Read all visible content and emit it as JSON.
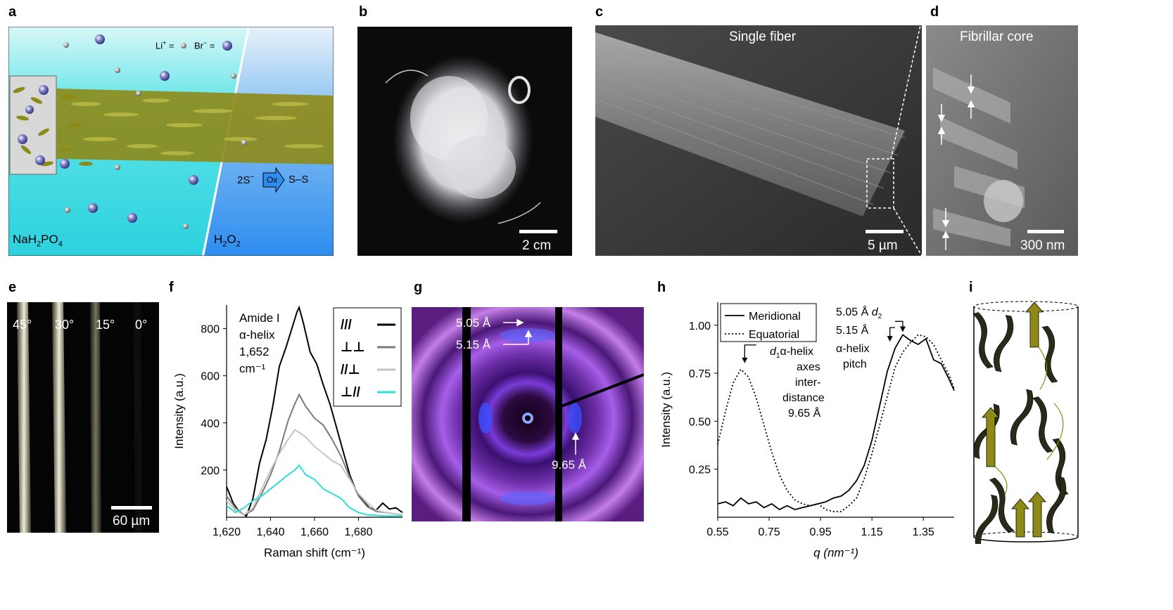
{
  "panels": {
    "a": {
      "letter": "a",
      "li_label": "Li",
      "li_sup": "+",
      "li_eq": "=",
      "br_label": "Br",
      "br_sup": "−",
      "br_eq": "=",
      "bath_left": {
        "t1": "NaH",
        "s1": "2",
        "t2": "PO",
        "s2": "4"
      },
      "bath_right": {
        "t1": "H",
        "s1": "2",
        "t2": "O",
        "s2": "2"
      },
      "reaction_left": "2S",
      "reaction_left_sup": "−",
      "reaction_arrow_label": "Ox",
      "reaction_right": "S–S",
      "colors": {
        "bath_left": "#38d9e6",
        "bath_right": "#3aa6f0",
        "fiber": "#8e8a17",
        "ion": "#5b5aa8"
      }
    },
    "b": {
      "letter": "b",
      "scale_label": "2 cm"
    },
    "c": {
      "letter": "c",
      "title": "Single fiber",
      "scale_label": "5 µm"
    },
    "d": {
      "letter": "d",
      "title": "Fibrillar core",
      "scale_label": "300 nm"
    },
    "e": {
      "letter": "e",
      "angles": [
        "45°",
        "30°",
        "15°",
        "0°"
      ],
      "scale_label": "60 µm"
    },
    "f": {
      "letter": "f"
    },
    "g": {
      "letter": "g",
      "labels": {
        "d505": "5.05 Å",
        "d515": "5.15 Å",
        "d965": "9.65 Å"
      }
    },
    "h": {
      "letter": "h",
      "labels": {
        "d505": "5.05 Å",
        "d2": "d",
        "d2_sub": "2",
        "d515": "5.15 Å",
        "pitch1": "α-helix",
        "pitch2": "pitch",
        "d1": "d",
        "d1_sub": "1",
        "d1_line1": "α-helix",
        "d1_line2": "axes",
        "d1_line3": "inter-",
        "d1_line4": "distance",
        "d1_line5": "9.65 Å"
      }
    },
    "i": {
      "letter": "i"
    }
  },
  "chart_data": [
    {
      "panel": "f",
      "type": "line",
      "xlabel": "Raman shift (cm⁻¹)",
      "ylabel": "Intensity (a.u.)",
      "xlim": [
        1620,
        1700
      ],
      "ylim": [
        0,
        900
      ],
      "xticks": [
        1620,
        1640,
        1660,
        1680
      ],
      "xtick_labels": [
        "1,620",
        "1,640",
        "1,660",
        "1,680"
      ],
      "yticks": [
        200,
        400,
        600,
        800
      ],
      "annotation": [
        "Amide I",
        "α-helix",
        "1,652",
        "cm⁻¹"
      ],
      "legend_position": "top-right",
      "series": [
        {
          "name": "///",
          "color": "#000000",
          "x": [
            1620,
            1623,
            1626,
            1629,
            1632,
            1635,
            1638,
            1641,
            1644,
            1647,
            1650,
            1652,
            1653,
            1655,
            1658,
            1661,
            1664,
            1667,
            1670,
            1673,
            1676,
            1679,
            1682,
            1685,
            1688,
            1691,
            1694,
            1697,
            1700
          ],
          "y": [
            130,
            60,
            20,
            5,
            80,
            230,
            330,
            470,
            640,
            720,
            810,
            870,
            890,
            820,
            700,
            650,
            560,
            480,
            380,
            280,
            180,
            110,
            70,
            40,
            30,
            60,
            35,
            40,
            20
          ]
        },
        {
          "name": "⊥⊥",
          "color": "#7a7a7a",
          "x": [
            1620,
            1624,
            1628,
            1632,
            1636,
            1640,
            1644,
            1648,
            1651,
            1653,
            1656,
            1660,
            1664,
            1668,
            1672,
            1676,
            1680,
            1684,
            1688,
            1692,
            1696,
            1700
          ],
          "y": [
            90,
            40,
            10,
            30,
            100,
            180,
            280,
            410,
            480,
            520,
            470,
            420,
            390,
            330,
            260,
            170,
            90,
            45,
            25,
            20,
            15,
            10
          ]
        },
        {
          "name": "//⊥",
          "color": "#c4c4c4",
          "x": [
            1620,
            1624,
            1628,
            1632,
            1636,
            1640,
            1644,
            1648,
            1651,
            1653,
            1656,
            1660,
            1664,
            1668,
            1672,
            1676,
            1680,
            1684,
            1688,
            1692,
            1696,
            1700
          ],
          "y": [
            70,
            30,
            10,
            40,
            120,
            200,
            270,
            330,
            370,
            360,
            340,
            300,
            270,
            240,
            220,
            160,
            100,
            60,
            30,
            20,
            15,
            10
          ]
        },
        {
          "name": "⊥//",
          "color": "#2be0d4",
          "x": [
            1620,
            1624,
            1628,
            1632,
            1636,
            1640,
            1644,
            1648,
            1651,
            1653,
            1656,
            1660,
            1664,
            1668,
            1672,
            1676,
            1680,
            1684,
            1688,
            1692,
            1696,
            1700
          ],
          "y": [
            50,
            20,
            40,
            70,
            90,
            120,
            150,
            180,
            200,
            220,
            180,
            160,
            120,
            100,
            80,
            40,
            20,
            10,
            8,
            5,
            5,
            5
          ]
        }
      ]
    },
    {
      "panel": "h",
      "type": "line",
      "xlabel": "q (nm⁻¹)",
      "ylabel": "Intensity (a.u.)",
      "xlim": [
        0.55,
        1.47
      ],
      "ylim": [
        0,
        1.12
      ],
      "xticks": [
        0.55,
        0.75,
        0.95,
        1.15,
        1.35
      ],
      "xtick_labels": [
        "0.55",
        "0.75",
        "0.95",
        "1.15",
        "1.35"
      ],
      "yticks": [
        0.25,
        0.5,
        0.75,
        1.0
      ],
      "ytick_labels": [
        "0.25",
        "0.50",
        "0.75",
        "1.00"
      ],
      "legend_position": "top-left",
      "series": [
        {
          "name": "Meridional",
          "dash": "solid",
          "x": [
            0.55,
            0.58,
            0.61,
            0.64,
            0.67,
            0.7,
            0.73,
            0.76,
            0.79,
            0.82,
            0.85,
            0.88,
            0.91,
            0.94,
            0.97,
            1.0,
            1.03,
            1.06,
            1.09,
            1.12,
            1.15,
            1.18,
            1.21,
            1.24,
            1.27,
            1.3,
            1.33,
            1.36,
            1.39,
            1.42,
            1.45,
            1.47
          ],
          "y": [
            0.07,
            0.08,
            0.06,
            0.1,
            0.07,
            0.08,
            0.05,
            0.07,
            0.04,
            0.06,
            0.04,
            0.05,
            0.06,
            0.07,
            0.08,
            0.1,
            0.11,
            0.14,
            0.19,
            0.27,
            0.4,
            0.58,
            0.76,
            0.88,
            0.95,
            0.92,
            0.9,
            0.93,
            0.82,
            0.8,
            0.72,
            0.66
          ]
        },
        {
          "name": "Equatorial",
          "dash": "dotted",
          "x": [
            0.55,
            0.58,
            0.61,
            0.64,
            0.67,
            0.7,
            0.73,
            0.76,
            0.79,
            0.82,
            0.85,
            0.88,
            0.91,
            0.94,
            0.97,
            1.0,
            1.03,
            1.06,
            1.09,
            1.12,
            1.15,
            1.18,
            1.21,
            1.24,
            1.27,
            1.3,
            1.33,
            1.36,
            1.39,
            1.42,
            1.45,
            1.47
          ],
          "y": [
            0.38,
            0.55,
            0.7,
            0.77,
            0.73,
            0.62,
            0.48,
            0.34,
            0.22,
            0.14,
            0.09,
            0.07,
            0.06,
            0.07,
            0.04,
            0.03,
            0.03,
            0.06,
            0.1,
            0.2,
            0.33,
            0.48,
            0.63,
            0.78,
            0.86,
            0.91,
            0.95,
            0.94,
            0.9,
            0.82,
            0.74,
            0.67
          ]
        }
      ]
    }
  ]
}
